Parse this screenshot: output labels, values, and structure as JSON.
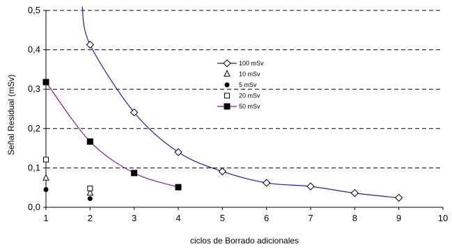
{
  "chart_data": {
    "type": "scatter",
    "title": "",
    "xlabel": "ciclos de Borrado adicionales",
    "ylabel": "Señal Residual (mSv)",
    "xlim": [
      1,
      10
    ],
    "ylim": [
      0,
      0.5
    ],
    "x_ticks": [
      1,
      2,
      3,
      4,
      5,
      6,
      7,
      8,
      9,
      10
    ],
    "y_ticks": [
      0,
      0.1,
      0.2,
      0.3,
      0.4,
      0.5
    ],
    "x_tick_labels": [
      "1",
      "2",
      "3",
      "4",
      "5",
      "6",
      "7",
      "8",
      "9",
      "10"
    ],
    "y_tick_labels": [
      "0,0",
      "0,1",
      "0,2",
      "0,3",
      "0,4",
      "0,5"
    ],
    "grid": "horizontal dashed",
    "legend_position": "right",
    "series": [
      {
        "name": "100 mSv",
        "marker": "diamond-open",
        "line": true,
        "color": "#1f1f8f",
        "x": [
          2,
          3,
          4,
          5,
          6,
          7,
          8,
          9
        ],
        "y": [
          0.413,
          0.241,
          0.14,
          0.091,
          0.062,
          0.053,
          0.036,
          0.024
        ],
        "curve_start": [
          1.82,
          0.51
        ]
      },
      {
        "name": "10 mSv",
        "marker": "triangle-open",
        "line": false,
        "color": "#000000",
        "x": [
          1,
          2
        ],
        "y": [
          0.074,
          0.036
        ]
      },
      {
        "name": "5 mSv",
        "marker": "circle-filled",
        "line": false,
        "color": "#000000",
        "x": [
          1,
          2
        ],
        "y": [
          0.045,
          0.022
        ]
      },
      {
        "name": "20 mSv",
        "marker": "square-open",
        "line": false,
        "color": "#000000",
        "x": [
          1,
          2
        ],
        "y": [
          0.121,
          0.048
        ]
      },
      {
        "name": "50 mSv",
        "marker": "square-filled",
        "line": true,
        "color": "#8b1a8b",
        "x": [
          1,
          2,
          3,
          4
        ],
        "y": [
          0.318,
          0.167,
          0.087,
          0.051
        ]
      }
    ]
  }
}
